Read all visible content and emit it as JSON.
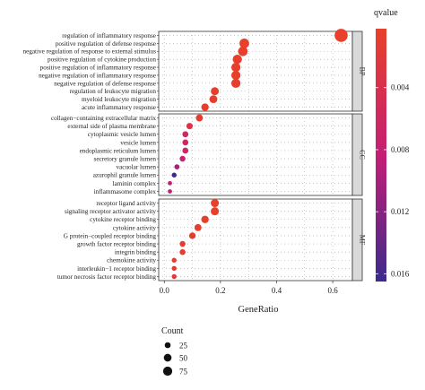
{
  "chart_data": {
    "type": "scatter",
    "title": "",
    "xlabel": "GeneRatio",
    "ylabel": "",
    "xlim": [
      -0.02,
      0.67
    ],
    "xticks": [
      0.0,
      0.2,
      0.4,
      0.6
    ],
    "xtick_labels": [
      "0.0",
      "0.2",
      "0.4",
      "0.6"
    ],
    "grid": "dotted",
    "color_legend": {
      "title": "qvalue",
      "position": "right",
      "range": [
        0.0002,
        0.0165
      ],
      "ticks": [
        0.004,
        0.008,
        0.012,
        0.016
      ],
      "tick_labels": [
        "0.004",
        "0.008",
        "0.012",
        "0.016"
      ],
      "colors": [
        "#e8402a",
        "#c41e76",
        "#3b2a8c"
      ]
    },
    "size_legend": {
      "title": "Count",
      "position": "bottom-left",
      "values": [
        25,
        50,
        75
      ],
      "labels": [
        "25",
        "50",
        "75"
      ]
    },
    "panels": [
      {
        "label": "BP",
        "terms": [
          {
            "term": "regulation of inflammatory response",
            "x": 0.63,
            "count": 80,
            "q": 0.0003
          },
          {
            "term": "positive regulation of defense response",
            "x": 0.285,
            "count": 38,
            "q": 0.0003
          },
          {
            "term": "negative regulation of response to external stimulus",
            "x": 0.28,
            "count": 37,
            "q": 0.0004
          },
          {
            "term": "positive regulation of cytokine production",
            "x": 0.26,
            "count": 34,
            "q": 0.0004
          },
          {
            "term": "positive regulation of inflammatory response",
            "x": 0.255,
            "count": 33,
            "q": 0.0004
          },
          {
            "term": "negative regulation of inflammatory response",
            "x": 0.255,
            "count": 33,
            "q": 0.0004
          },
          {
            "term": "negative regulation of defense response",
            "x": 0.255,
            "count": 33,
            "q": 0.0004
          },
          {
            "term": "regulation of leukocyte migration",
            "x": 0.18,
            "count": 23,
            "q": 0.0005
          },
          {
            "term": "myeloid leukocyte migration",
            "x": 0.175,
            "count": 22,
            "q": 0.0005
          },
          {
            "term": "acute inflammatory response",
            "x": 0.145,
            "count": 19,
            "q": 0.0006
          }
        ]
      },
      {
        "label": "CC",
        "terms": [
          {
            "term": "collagen−containing extracellular matrix",
            "x": 0.125,
            "count": 16,
            "q": 0.0012
          },
          {
            "term": "external side of plasma membrane",
            "x": 0.09,
            "count": 12,
            "q": 0.003
          },
          {
            "term": "cytoplasmic vesicle lumen",
            "x": 0.075,
            "count": 10,
            "q": 0.006
          },
          {
            "term": "vesicle lumen",
            "x": 0.075,
            "count": 10,
            "q": 0.006
          },
          {
            "term": "endoplasmic reticulum lumen",
            "x": 0.075,
            "count": 10,
            "q": 0.0065
          },
          {
            "term": "secretory granule lumen",
            "x": 0.065,
            "count": 9,
            "q": 0.0075
          },
          {
            "term": "vacuolar lumen",
            "x": 0.045,
            "count": 6,
            "q": 0.01
          },
          {
            "term": "azurophil granule lumen",
            "x": 0.035,
            "count": 5,
            "q": 0.0165
          },
          {
            "term": "laminin complex",
            "x": 0.02,
            "count": 3,
            "q": 0.0085
          },
          {
            "term": "inflammasome complex",
            "x": 0.02,
            "count": 3,
            "q": 0.0085
          }
        ]
      },
      {
        "label": "MF",
        "terms": [
          {
            "term": "receptor ligand activity",
            "x": 0.18,
            "count": 24,
            "q": 0.0003
          },
          {
            "term": "signaling receptor activator activity",
            "x": 0.18,
            "count": 24,
            "q": 0.0003
          },
          {
            "term": "cytokine receptor binding",
            "x": 0.145,
            "count": 19,
            "q": 0.0004
          },
          {
            "term": "cytokine activity",
            "x": 0.12,
            "count": 16,
            "q": 0.0005
          },
          {
            "term": "G protein−coupled receptor binding",
            "x": 0.1,
            "count": 13,
            "q": 0.0006
          },
          {
            "term": "growth factor receptor binding",
            "x": 0.065,
            "count": 9,
            "q": 0.0008
          },
          {
            "term": "integrin binding",
            "x": 0.065,
            "count": 9,
            "q": 0.0009
          },
          {
            "term": "chemokine activity",
            "x": 0.035,
            "count": 5,
            "q": 0.0012
          },
          {
            "term": "interleukin−1 receptor binding",
            "x": 0.035,
            "count": 5,
            "q": 0.0015
          },
          {
            "term": "tumor necrosis factor receptor binding",
            "x": 0.035,
            "count": 5,
            "q": 0.0018
          }
        ]
      }
    ]
  }
}
